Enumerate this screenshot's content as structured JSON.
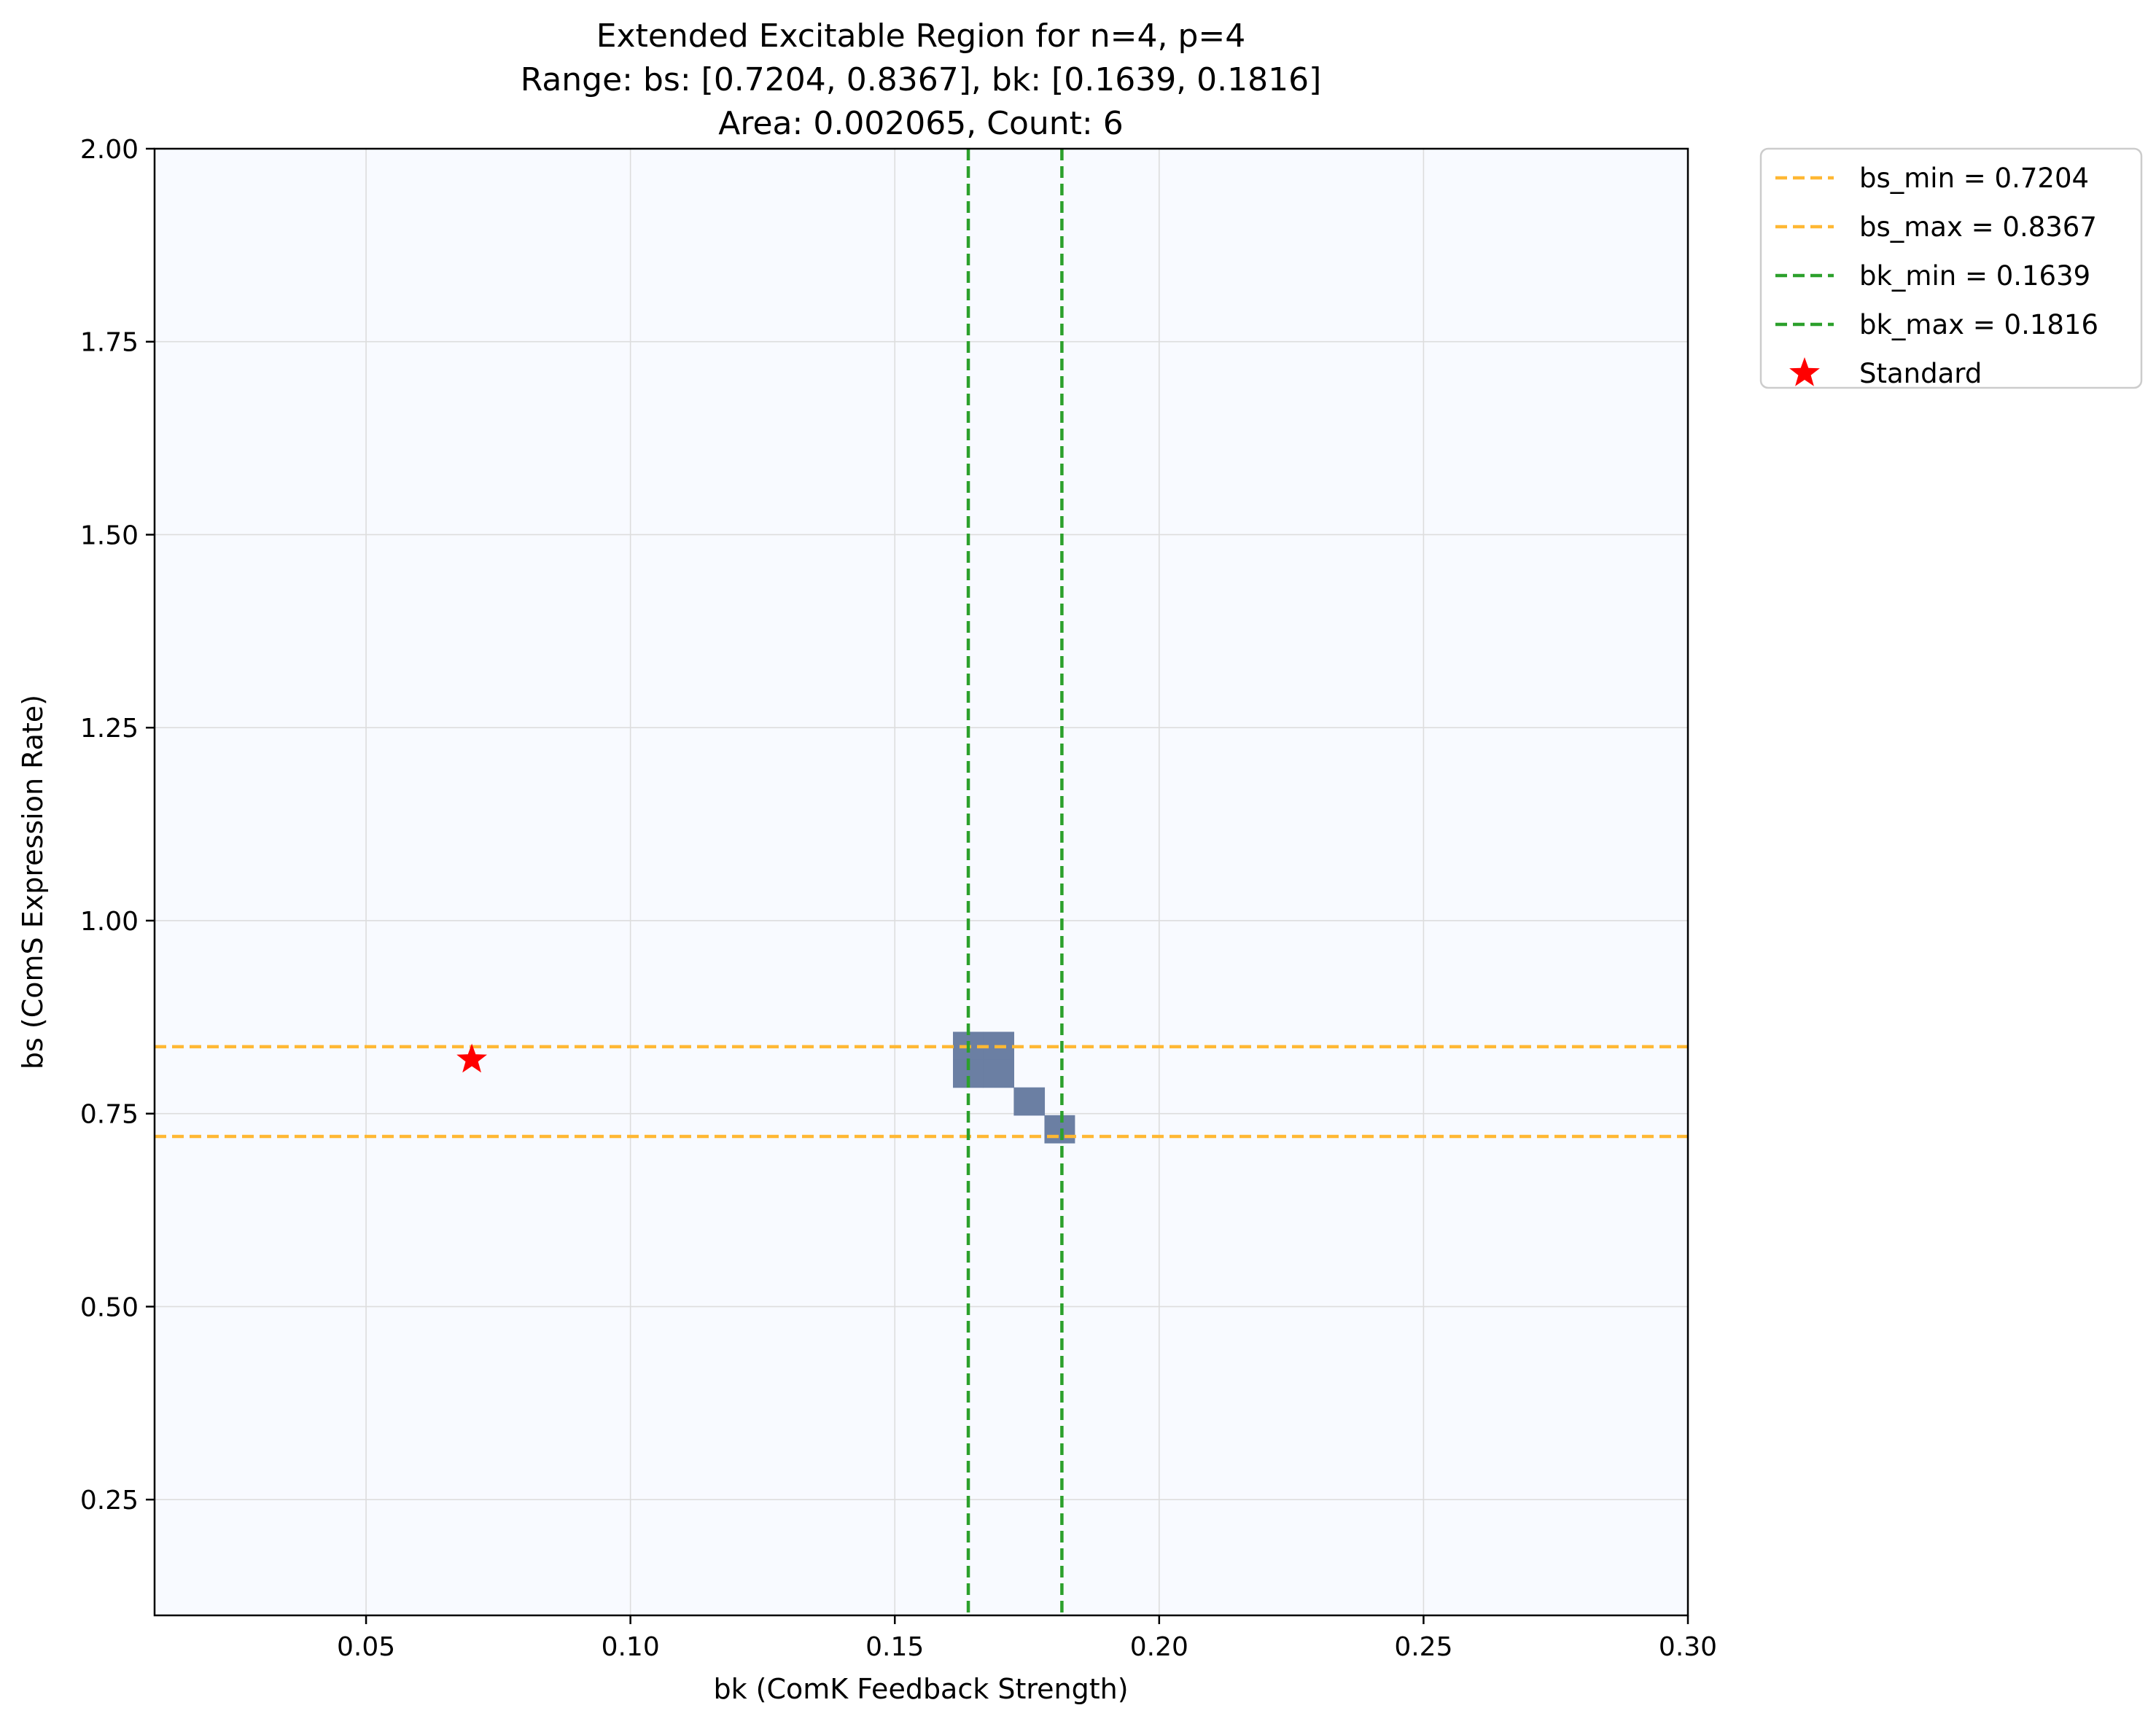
{
  "chart_data": {
    "type": "heatmap",
    "title_lines": [
      "Extended Excitable Region for n=4, p=4",
      "Range: bs: [0.7204, 0.8367], bk: [0.1639, 0.1816]",
      "Area: 0.002065, Count: 6"
    ],
    "xlabel": "bk (ComK Feedback Strength)",
    "ylabel": "bs (ComS Expression Rate)",
    "xlim": [
      0.01,
      0.3
    ],
    "ylim": [
      0.1,
      2.0
    ],
    "xticks": [
      0.05,
      0.1,
      0.15,
      0.2,
      0.25,
      0.3
    ],
    "xtick_labels": [
      "0.05",
      "0.10",
      "0.15",
      "0.20",
      "0.25",
      "0.30"
    ],
    "yticks": [
      0.25,
      0.5,
      0.75,
      1.0,
      1.25,
      1.5,
      1.75,
      2.0
    ],
    "ytick_labels": [
      "0.25",
      "0.50",
      "0.75",
      "1.00",
      "1.25",
      "1.50",
      "1.75",
      "2.00"
    ],
    "grid": true,
    "region_cells": [
      {
        "bk": [
          0.161,
          0.1667
        ],
        "bs": [
          0.82,
          0.856
        ]
      },
      {
        "bk": [
          0.1667,
          0.1725
        ],
        "bs": [
          0.82,
          0.856
        ]
      },
      {
        "bk": [
          0.161,
          0.1667
        ],
        "bs": [
          0.784,
          0.82
        ]
      },
      {
        "bk": [
          0.1667,
          0.1725
        ],
        "bs": [
          0.784,
          0.82
        ]
      },
      {
        "bk": [
          0.1725,
          0.1783
        ],
        "bs": [
          0.748,
          0.784
        ]
      },
      {
        "bk": [
          0.1783,
          0.184
        ],
        "bs": [
          0.712,
          0.748
        ]
      }
    ],
    "hlines": [
      {
        "name": "bs_min = 0.7204",
        "y": 0.7204,
        "color": "#ffb833"
      },
      {
        "name": "bs_max = 0.8367",
        "y": 0.8367,
        "color": "#ffb833"
      }
    ],
    "vlines": [
      {
        "name": "bk_min = 0.1639",
        "x": 0.1639,
        "color": "#2ca02c"
      },
      {
        "name": "bk_max = 0.1816",
        "x": 0.1816,
        "color": "#2ca02c"
      }
    ],
    "points": [
      {
        "name": "Standard",
        "x": 0.07,
        "y": 0.82,
        "color": "#ff0000",
        "marker": "star"
      }
    ],
    "legend_placement": "outside-top-right",
    "colors": {
      "background": "#f8faff",
      "region": "#6b7fa3",
      "grid": "#dddddd"
    }
  }
}
